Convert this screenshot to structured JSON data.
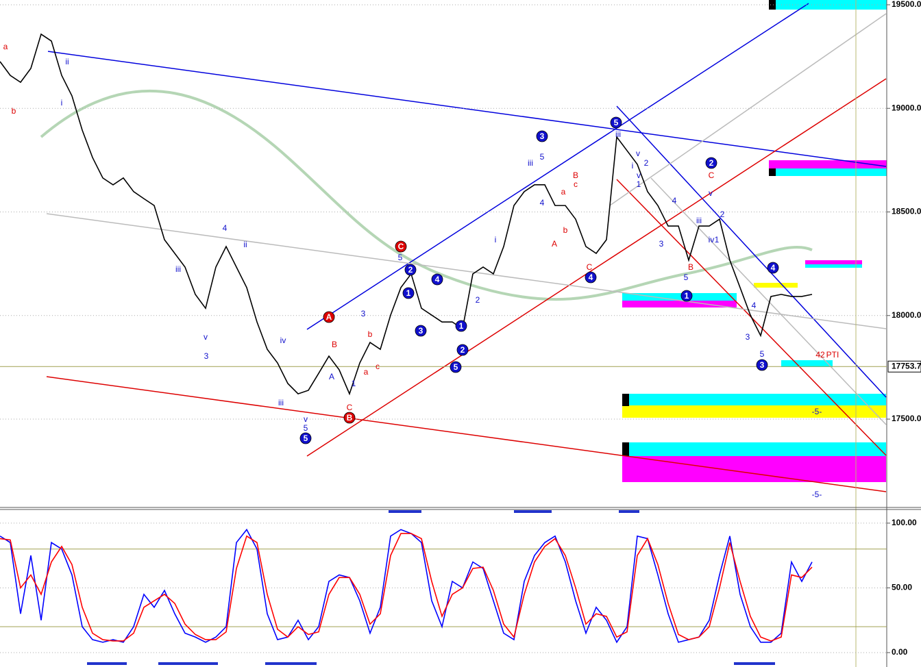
{
  "chart_data": [
    {
      "type": "line",
      "series": [
        {
          "color": "#000000",
          "values": [
            19226,
            19159,
            19126,
            19193,
            19358,
            19325,
            19159,
            19060,
            18895,
            18763,
            18664,
            18631,
            18664,
            18598,
            18564,
            18531,
            18366,
            18300,
            18234,
            18102,
            18035,
            18234,
            18333,
            18234,
            18135,
            17969,
            17837,
            17771,
            17672,
            17622,
            17639,
            17721,
            17804,
            17738,
            17622,
            17771,
            17870,
            17837,
            18002,
            18135,
            18201,
            18035,
            18002,
            17969,
            17969,
            17936,
            18201,
            18234,
            18201,
            18333,
            18531,
            18598,
            18631,
            18631,
            18531,
            18531,
            18465,
            18333,
            18300,
            18366,
            18862,
            18796,
            18730,
            18598,
            18531,
            18432,
            18432,
            18267,
            18432,
            18432,
            18465,
            18267,
            18135,
            18002,
            17903,
            18092,
            18102,
            18092,
            18092,
            18102
          ]
        }
      ],
      "ylim": [
        17077,
        19523
      ],
      "yticks": [
        {
          "value": 19500,
          "label": "19500.0"
        },
        {
          "value": 19000,
          "label": "19000.0"
        },
        {
          "value": 18500,
          "label": "18500.0"
        },
        {
          "value": 18000,
          "label": "18000.0"
        },
        {
          "value": 17500,
          "label": "17500.0"
        }
      ],
      "price_marker": 17753.7,
      "annotations": [
        "a",
        "b",
        "i",
        "ii",
        "iii",
        "v",
        "3",
        "4",
        "ii",
        "iv",
        "iii",
        "v",
        "5",
        "5",
        "A",
        "B",
        "A",
        "C",
        "B",
        "3",
        "b",
        "a",
        "c",
        "1",
        "C",
        "5",
        "2",
        "1",
        "3",
        "4",
        "1",
        "2",
        "5",
        "2",
        "i",
        "3",
        "iii",
        "5",
        "4",
        "B",
        "c",
        "a",
        "A",
        "b",
        "C",
        "4",
        "5",
        "iii",
        "v",
        "i",
        "v",
        "1",
        "2",
        "3",
        "4",
        "5",
        "B",
        "2",
        "C",
        "v",
        "2",
        "iii",
        "iv",
        "1",
        "3",
        "4",
        "5",
        "3",
        "4",
        "1",
        "-5-",
        "-5-",
        "42",
        "PTI"
      ]
    },
    {
      "type": "line",
      "series": [
        {
          "color": "#0000ff",
          "values": [
            90,
            85,
            30,
            75,
            25,
            85,
            80,
            60,
            20,
            10,
            8,
            10,
            8,
            20,
            45,
            35,
            48,
            30,
            15,
            12,
            8,
            12,
            20,
            85,
            95,
            80,
            30,
            10,
            12,
            25,
            10,
            20,
            55,
            60,
            58,
            40,
            15,
            35,
            90,
            95,
            92,
            85,
            40,
            20,
            55,
            50,
            70,
            65,
            40,
            15,
            10,
            55,
            75,
            85,
            90,
            70,
            40,
            15,
            35,
            25,
            8,
            20,
            90,
            88,
            60,
            30,
            8,
            10,
            12,
            25,
            60,
            90,
            45,
            20,
            8,
            8,
            15,
            70,
            55,
            70
          ]
        },
        {
          "color": "#ff0000",
          "values": [
            88,
            87,
            50,
            60,
            45,
            70,
            82,
            68,
            35,
            15,
            10,
            9,
            9,
            15,
            35,
            40,
            45,
            38,
            22,
            14,
            10,
            10,
            16,
            65,
            90,
            85,
            45,
            18,
            12,
            20,
            14,
            16,
            45,
            58,
            58,
            45,
            22,
            30,
            75,
            92,
            92,
            88,
            55,
            28,
            45,
            50,
            65,
            66,
            48,
            22,
            12,
            45,
            70,
            82,
            88,
            75,
            50,
            22,
            30,
            28,
            12,
            16,
            75,
            88,
            68,
            38,
            14,
            10,
            12,
            20,
            50,
            85,
            55,
            28,
            12,
            9,
            12,
            60,
            58,
            66
          ]
        }
      ],
      "ylim": [
        -9,
        110
      ],
      "yticks": [
        {
          "value": 100,
          "label": "100.00"
        },
        {
          "value": 50,
          "label": "50.00"
        },
        {
          "value": 0,
          "label": "0.00"
        }
      ],
      "reference_lines": [
        80,
        20
      ]
    }
  ]
}
